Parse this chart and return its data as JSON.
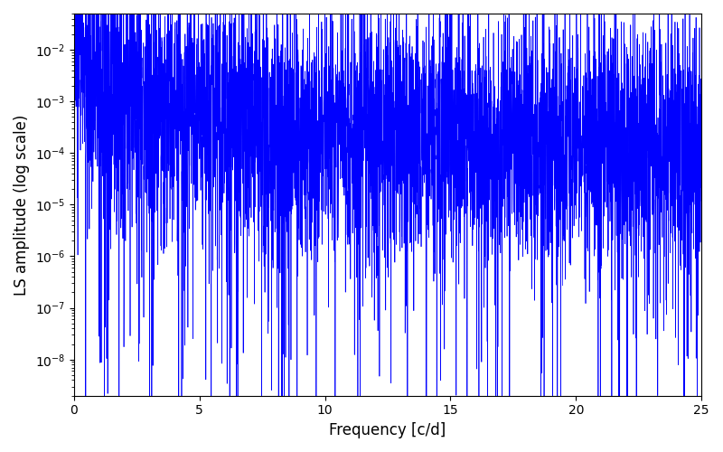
{
  "xlabel": "Frequency [c/d]",
  "ylabel": "LS amplitude (log scale)",
  "line_color": "#0000ff",
  "background_color": "#ffffff",
  "xlim": [
    0,
    25
  ],
  "ylim_log": [
    -8.7,
    -1.3
  ],
  "n_points": 5000,
  "seed": 42,
  "figsize": [
    8.0,
    5.0
  ],
  "dpi": 100,
  "xlabel_fontsize": 12,
  "ylabel_fontsize": 12,
  "tick_fontsize": 10,
  "spine_color": "#000000"
}
